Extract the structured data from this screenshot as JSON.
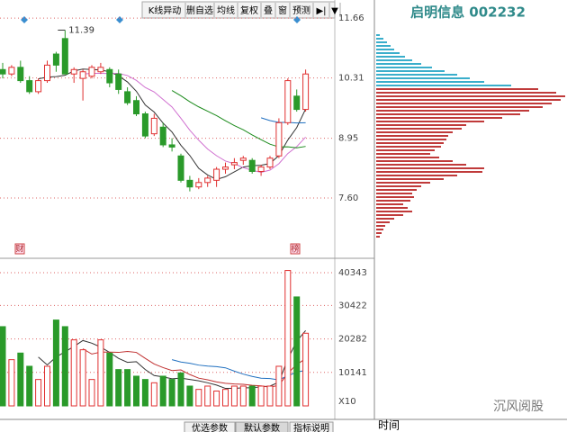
{
  "header": {
    "title": "启明信息 002232",
    "toolbar": [
      "K线异动",
      "删自选",
      "均线",
      "复权",
      "叠",
      "窗",
      "预测",
      "▶|",
      "▼"
    ]
  },
  "chart_data": {
    "type": "candlestick",
    "up_color": "#e03030",
    "down_color": "#2a9a2a",
    "open": [
      10.5,
      10.4,
      10.55,
      10.25,
      10.0,
      10.25,
      10.85,
      11.2,
      10.4,
      10.3,
      10.35,
      10.45,
      10.5,
      10.4,
      10.0,
      9.8,
      9.5,
      9.05,
      9.2,
      8.8,
      8.55,
      8.0,
      7.85,
      7.95,
      8.0,
      8.25,
      8.35,
      8.45,
      8.45,
      8.2,
      8.3,
      8.55,
      9.3,
      9.9,
      9.6
    ],
    "high": [
      10.65,
      10.6,
      10.7,
      10.35,
      10.3,
      10.7,
      10.9,
      11.39,
      10.55,
      10.5,
      10.6,
      10.65,
      10.55,
      10.5,
      10.1,
      9.9,
      9.55,
      9.5,
      9.3,
      8.95,
      8.6,
      8.1,
      8.05,
      8.1,
      8.3,
      8.4,
      8.5,
      8.55,
      8.5,
      8.35,
      8.55,
      9.4,
      10.3,
      10.05,
      10.5
    ],
    "low": [
      10.3,
      10.35,
      10.2,
      9.95,
      9.95,
      10.2,
      10.45,
      10.4,
      10.2,
      9.8,
      10.3,
      10.4,
      10.1,
      9.95,
      9.7,
      9.45,
      8.95,
      9.0,
      8.75,
      8.65,
      7.95,
      7.75,
      7.8,
      7.85,
      7.85,
      8.15,
      8.25,
      8.35,
      8.15,
      8.1,
      8.25,
      8.5,
      9.25,
      9.55,
      9.55
    ],
    "close": [
      10.4,
      10.55,
      10.25,
      10.0,
      10.25,
      10.6,
      10.6,
      10.4,
      10.5,
      10.45,
      10.55,
      10.55,
      10.2,
      10.05,
      9.75,
      9.5,
      9.0,
      9.4,
      8.8,
      8.75,
      8.0,
      7.85,
      7.95,
      8.05,
      8.25,
      8.3,
      8.4,
      8.5,
      8.2,
      8.3,
      8.5,
      9.3,
      10.25,
      9.6,
      10.4
    ],
    "ylim": [
      6.28,
      12.07
    ],
    "yticks": [
      {
        "value": 7.6,
        "label": "7.60"
      },
      8.95,
      10.31,
      11.66
    ],
    "high_label": "11.39",
    "markers": [
      "财",
      "榜"
    ],
    "volume": [
      24000,
      14000,
      16000,
      12000,
      8000,
      12000,
      26000,
      24000,
      20000,
      17000,
      8000,
      20000,
      16000,
      11000,
      11000,
      9000,
      8000,
      7000,
      9000,
      8000,
      10000,
      6000,
      5000,
      6000,
      4500,
      5000,
      6000,
      6000,
      6000,
      6000,
      6000,
      12000,
      41000,
      33000,
      22000
    ],
    "volume_ylim": [
      0,
      43880
    ],
    "volume_yticks": [
      10141,
      20282,
      30422,
      40343
    ],
    "volume_unit": "X10",
    "profile_series": [
      {
        "color": "#3aaecb",
        "values": [
          4,
          8,
          12,
          16,
          20,
          26,
          32,
          40,
          50,
          62,
          76,
          90,
          104,
          120,
          150
        ]
      },
      {
        "color": "#c03a3a",
        "values": [
          180,
          200,
          210,
          205,
          195,
          185,
          170,
          160,
          140,
          120,
          100,
          95,
          85,
          80,
          78,
          75,
          72,
          65,
          60,
          70,
          85,
          100,
          120,
          118,
          90,
          75,
          60,
          50,
          45,
          40,
          42,
          38,
          30,
          35,
          40,
          30,
          20,
          15,
          10,
          8,
          6,
          4
        ]
      }
    ]
  },
  "footer": {
    "tabs": [
      "优选参数",
      "默认参数",
      "指标说明"
    ],
    "time_label": "时间",
    "watermark": "沉风阅股"
  }
}
